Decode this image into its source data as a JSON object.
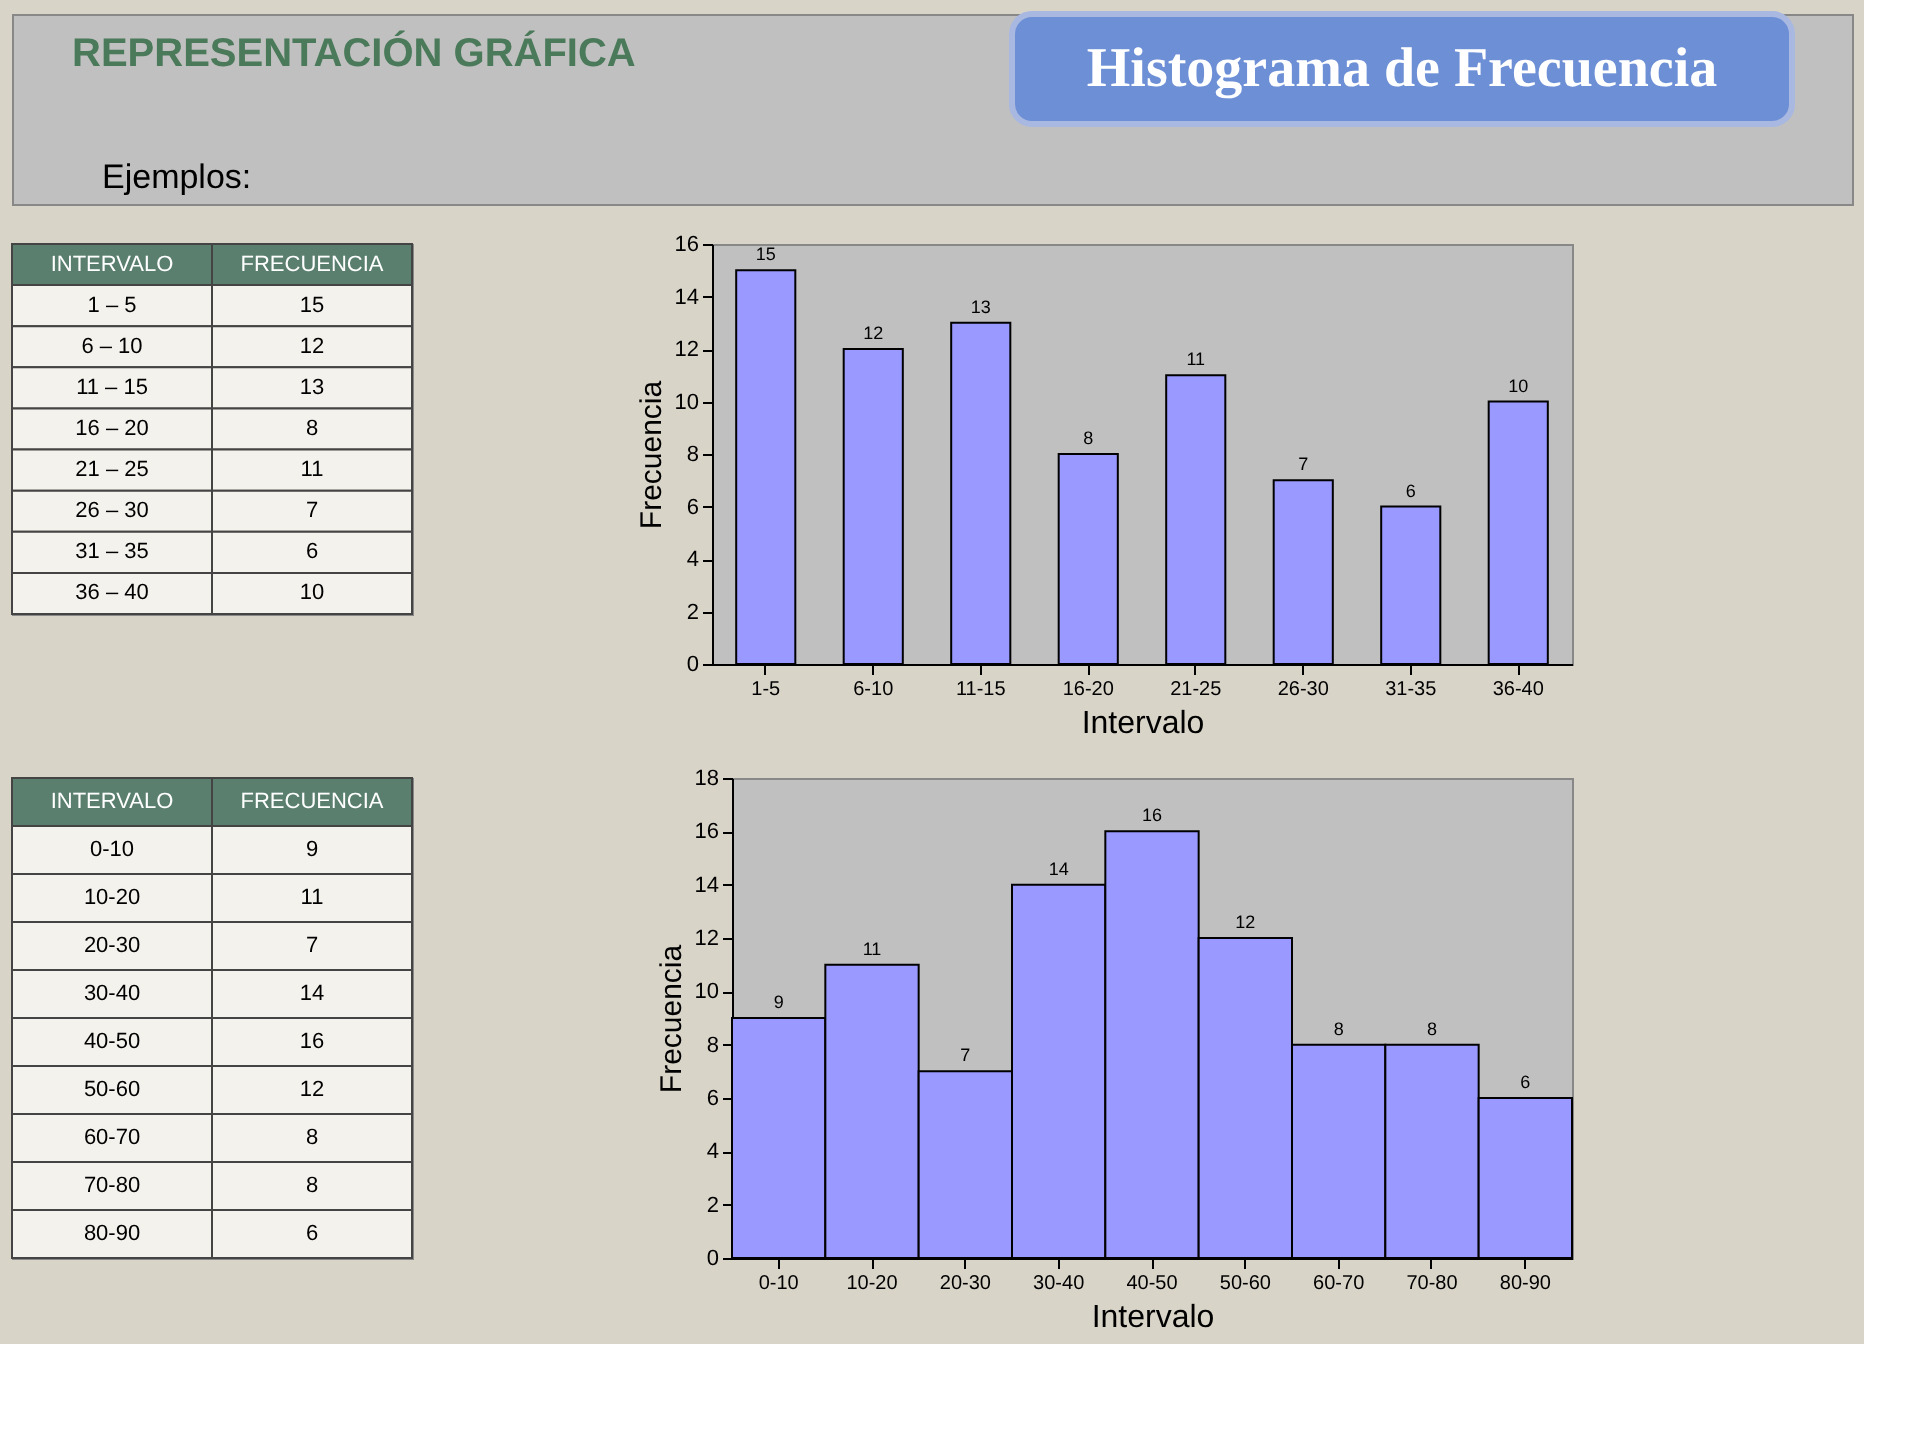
{
  "chart_data": [
    {
      "type": "other",
      "title": "REPRESENTACIÓN GRÁFICA",
      "subtitle": "Histograma de Frecuencia",
      "annotations": [
        "Ejemplos:"
      ]
    },
    {
      "type": "other",
      "categories": [
        "INTERVALO",
        "FRECUENCIA"
      ],
      "annotations": [
        "1 – 5",
        "15",
        "6 – 10",
        "12",
        "11 – 15",
        "13",
        "16 – 20",
        "8",
        "21 – 25",
        "11",
        "26 – 30",
        "7",
        "31 – 35",
        "6",
        "36 – 40",
        "10"
      ]
    },
    {
      "type": "bar",
      "categories": [
        "1-5",
        "6-10",
        "11-15",
        "16-20",
        "21-25",
        "26-30",
        "31-35",
        "36-40"
      ],
      "values": [
        15,
        12,
        13,
        8,
        11,
        7,
        6,
        10
      ],
      "color": "#9999ff",
      "ylim": [
        0,
        16
      ],
      "yticks": [
        0,
        2,
        4,
        6,
        8,
        10,
        12,
        14,
        16
      ],
      "xlabel": "Intervalo",
      "ylabel": "Frecuencia",
      "data_labels": true
    },
    {
      "type": "other",
      "categories": [
        "INTERVALO",
        "FRECUENCIA"
      ],
      "annotations": [
        "0-10",
        "9",
        "10-20",
        "11",
        "20-30",
        "7",
        "30-40",
        "14",
        "40-50",
        "16",
        "50-60",
        "12",
        "60-70",
        "8",
        "70-80",
        "8",
        "80-90",
        "6"
      ]
    },
    {
      "type": "bar",
      "categories": [
        "0-10",
        "10-20",
        "20-30",
        "30-40",
        "40-50",
        "50-60",
        "60-70",
        "70-80",
        "80-90"
      ],
      "values": [
        9,
        11,
        7,
        14,
        16,
        12,
        8,
        8,
        6
      ],
      "color": "#9999ff",
      "ylim": [
        0,
        18
      ],
      "yticks": [
        0,
        2,
        4,
        6,
        8,
        10,
        12,
        14,
        16,
        18
      ],
      "xlabel": "Intervalo",
      "ylabel": "Frecuencia",
      "data_labels": true
    }
  ]
}
